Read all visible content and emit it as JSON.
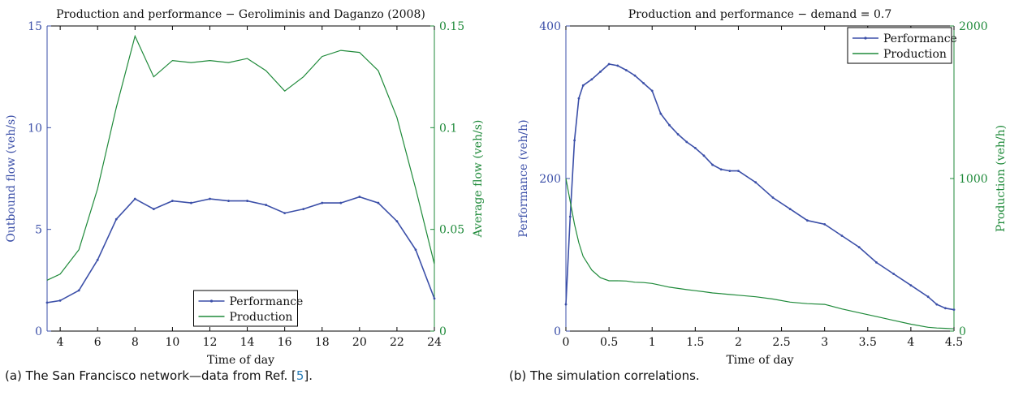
{
  "colors": {
    "blue": "#3b4fa8",
    "green": "#1f8a3a",
    "text": "#111111",
    "link": "#2c7fb8"
  },
  "captions": {
    "a_prefix": "(a) The San Francisco network—data from Ref. [",
    "a_ref": "5",
    "a_suffix": "].",
    "b": "(b) The simulation correlations."
  },
  "chart_data": [
    {
      "type": "line",
      "title": "Production and performance − Geroliminis and Daganzo (2008)",
      "xlabel": "Time of day",
      "ylabel_left": "Outbound flow (veh/s)",
      "ylabel_right": "Average flow (veh/s)",
      "xlim": [
        3.3,
        24
      ],
      "ylim_left": [
        0,
        15
      ],
      "ylim_right": [
        0,
        0.15
      ],
      "xticks": [
        "4",
        "6",
        "8",
        "10",
        "12",
        "14",
        "16",
        "18",
        "20",
        "22",
        "24"
      ],
      "yticks_left": [
        "0",
        "5",
        "10",
        "15"
      ],
      "yticks_right": [
        "0",
        "0.05",
        "0.1",
        "0.15"
      ],
      "legend": {
        "position": "bottom-center",
        "entries": [
          "Performance",
          "Production"
        ]
      },
      "x": [
        3.3,
        4,
        5,
        6,
        7,
        8,
        9,
        10,
        11,
        12,
        13,
        14,
        15,
        16,
        17,
        18,
        19,
        20,
        21,
        22,
        23,
        24
      ],
      "series": [
        {
          "name": "Performance",
          "axis": "left",
          "marker": true,
          "values": [
            1.4,
            1.5,
            2.0,
            3.5,
            5.5,
            6.5,
            6.0,
            6.4,
            6.3,
            6.5,
            6.4,
            6.4,
            6.2,
            5.8,
            6.0,
            6.3,
            6.3,
            6.6,
            6.3,
            5.4,
            4.0,
            1.6
          ]
        },
        {
          "name": "Production",
          "axis": "right",
          "marker": false,
          "values": [
            0.025,
            0.028,
            0.04,
            0.07,
            0.11,
            0.145,
            0.125,
            0.133,
            0.132,
            0.133,
            0.132,
            0.134,
            0.128,
            0.118,
            0.125,
            0.135,
            0.138,
            0.137,
            0.128,
            0.105,
            0.07,
            0.033
          ]
        }
      ]
    },
    {
      "type": "line",
      "title": "Production and performance − demand = 0.7",
      "xlabel": "Time of day",
      "ylabel_left": "Performance (veh/h)",
      "ylabel_right": "Production (veh/h)",
      "xlim": [
        0,
        4.5
      ],
      "ylim_left": [
        0,
        400
      ],
      "ylim_right": [
        0,
        2000
      ],
      "xticks": [
        "0",
        "0.5",
        "1",
        "1.5",
        "2",
        "2.5",
        "3",
        "3.5",
        "4",
        "4.5"
      ],
      "yticks_left": [
        "0",
        "200",
        "400"
      ],
      "yticks_right": [
        "0",
        "1000",
        "2000"
      ],
      "legend": {
        "position": "top-right",
        "entries": [
          "Performance",
          "Production"
        ]
      },
      "x": [
        0,
        0.05,
        0.1,
        0.15,
        0.2,
        0.3,
        0.4,
        0.5,
        0.6,
        0.7,
        0.8,
        0.9,
        1.0,
        1.1,
        1.2,
        1.3,
        1.4,
        1.5,
        1.6,
        1.7,
        1.8,
        1.9,
        2.0,
        2.2,
        2.4,
        2.6,
        2.8,
        3.0,
        3.2,
        3.4,
        3.6,
        3.8,
        4.0,
        4.2,
        4.3,
        4.4,
        4.5
      ],
      "series": [
        {
          "name": "Performance",
          "axis": "left",
          "marker": true,
          "values": [
            35,
            150,
            250,
            305,
            322,
            330,
            340,
            350,
            348,
            342,
            335,
            325,
            315,
            285,
            270,
            258,
            248,
            240,
            230,
            218,
            212,
            210,
            210,
            195,
            175,
            160,
            145,
            140,
            125,
            110,
            90,
            75,
            60,
            45,
            35,
            30,
            28
          ]
        },
        {
          "name": "Production",
          "axis": "right",
          "marker": false,
          "values": [
            1000,
            850,
            700,
            580,
            490,
            400,
            350,
            330,
            330,
            328,
            320,
            318,
            312,
            300,
            288,
            280,
            272,
            265,
            258,
            250,
            245,
            240,
            235,
            225,
            210,
            190,
            180,
            175,
            145,
            120,
            95,
            70,
            45,
            25,
            20,
            18,
            15
          ]
        }
      ]
    }
  ]
}
